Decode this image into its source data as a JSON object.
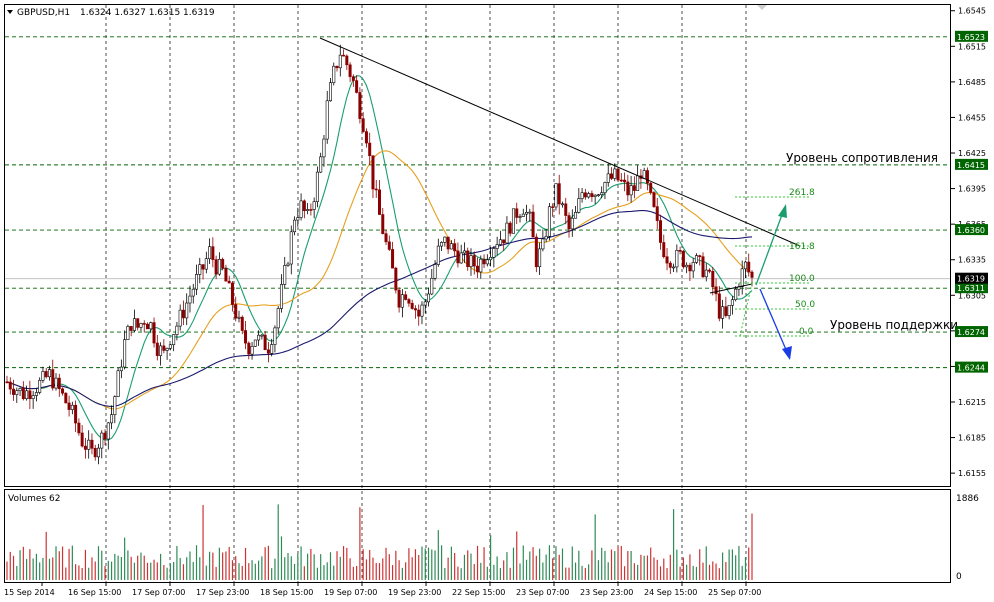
{
  "header": {
    "symbol_label": "GBPUSD,H1",
    "ohlc_text": "1.6324 1.6327 1.6315 1.6319"
  },
  "volume_panel": {
    "label": "Volumes 62",
    "scale_max_label": "1886",
    "scale_min_label": "0"
  },
  "annotations": {
    "resistance_label": "Уровень сопротивления",
    "support_label": "Уровень поддержки"
  },
  "colors": {
    "background": "#ffffff",
    "up_candle": "#000000",
    "down_candle": "#8b0000",
    "ma_fast": "#1a9e6e",
    "ma_mid": "#e6a020",
    "ma_slow": "#1a1a6e",
    "level_line": "#006400",
    "fib": "#32cd32",
    "arrow_up": "#1a9e6e",
    "arrow_down": "#1a3ee6",
    "volume_up": "#2e8b57",
    "volume_down": "#cd3333",
    "price_tag_bg": "#006400"
  },
  "chart_data": {
    "type": "candlestick",
    "symbol": "GBPUSD",
    "timeframe": "H1",
    "y_axis_ticks": [
      "1.6545",
      "1.6515",
      "1.6485",
      "1.6455",
      "1.6425",
      "1.6395",
      "1.6365",
      "1.6335",
      "1.6305",
      "1.6275",
      "1.6245",
      "1.6215",
      "1.6185",
      "1.6155"
    ],
    "ylim": [
      1.6145,
      1.6549
    ],
    "x_axis_ticks": [
      "15 Sep 2014",
      "16 Sep 15:00",
      "17 Sep 07:00",
      "17 Sep 23:00",
      "18 Sep 15:00",
      "19 Sep 07:00",
      "19 Sep 23:00",
      "22 Sep 15:00",
      "23 Sep 07:00",
      "23 Sep 23:00",
      "24 Sep 15:00",
      "25 Sep 07:00"
    ],
    "horizontal_levels": [
      {
        "value": 1.6523,
        "label": "1.6523"
      },
      {
        "value": 1.6415,
        "label": "1.6415"
      },
      {
        "value": 1.636,
        "label": "1.6360"
      },
      {
        "value": 1.6311,
        "label": "1.6311"
      },
      {
        "value": 1.6274,
        "label": "1.6274"
      },
      {
        "value": 1.6244,
        "label": "1.6244"
      }
    ],
    "current_price": {
      "value": 1.6319,
      "label": "1.6319"
    },
    "fibonacci_levels": [
      "261.8",
      "161.8",
      "100.0",
      "50.0",
      "0.0"
    ],
    "volume_ylim": [
      0,
      1886
    ],
    "close_path": [
      [
        0,
        1.6232
      ],
      [
        5,
        1.6222
      ],
      [
        9,
        1.6228
      ],
      [
        13,
        1.6238
      ],
      [
        17,
        1.622
      ],
      [
        20,
        1.6205
      ],
      [
        23,
        1.6182
      ],
      [
        26,
        1.6172
      ],
      [
        29,
        1.6185
      ],
      [
        32,
        1.6205
      ],
      [
        34,
        1.6235
      ],
      [
        36,
        1.6265
      ],
      [
        38,
        1.6282
      ],
      [
        40,
        1.6278
      ],
      [
        42,
        1.6285
      ],
      [
        44,
        1.628
      ],
      [
        46,
        1.6262
      ],
      [
        48,
        1.6255
      ],
      [
        50,
        1.627
      ],
      [
        52,
        1.628
      ],
      [
        54,
        1.6292
      ],
      [
        56,
        1.6305
      ],
      [
        58,
        1.6318
      ],
      [
        60,
        1.6328
      ],
      [
        62,
        1.6342
      ],
      [
        64,
        1.633
      ],
      [
        66,
        1.6325
      ],
      [
        68,
        1.6308
      ],
      [
        70,
        1.629
      ],
      [
        72,
        1.627
      ],
      [
        74,
        1.6262
      ],
      [
        76,
        1.627
      ],
      [
        78,
        1.6265
      ],
      [
        80,
        1.6262
      ],
      [
        82,
        1.628
      ],
      [
        84,
        1.6308
      ],
      [
        86,
        1.6338
      ],
      [
        88,
        1.6372
      ],
      [
        90,
        1.638
      ],
      [
        92,
        1.637
      ],
      [
        94,
        1.639
      ],
      [
        96,
        1.642
      ],
      [
        98,
        1.6465
      ],
      [
        100,
        1.6492
      ],
      [
        102,
        1.651
      ],
      [
        104,
        1.65
      ],
      [
        106,
        1.6485
      ],
      [
        108,
        1.6462
      ],
      [
        110,
        1.644
      ],
      [
        112,
        1.64
      ],
      [
        114,
        1.6372
      ],
      [
        116,
        1.6348
      ],
      [
        118,
        1.6325
      ],
      [
        120,
        1.6302
      ],
      [
        122,
        1.6308
      ],
      [
        124,
        1.63
      ],
      [
        126,
        1.6288
      ],
      [
        128,
        1.63
      ],
      [
        130,
        1.632
      ],
      [
        132,
        1.6342
      ],
      [
        134,
        1.635
      ],
      [
        136,
        1.6345
      ],
      [
        138,
        1.634
      ],
      [
        140,
        1.6335
      ],
      [
        142,
        1.6332
      ],
      [
        144,
        1.633
      ],
      [
        146,
        1.6338
      ],
      [
        148,
        1.6345
      ],
      [
        150,
        1.6352
      ],
      [
        152,
        1.6355
      ],
      [
        154,
        1.6365
      ],
      [
        156,
        1.6375
      ],
      [
        158,
        1.638
      ],
      [
        160,
        1.6368
      ],
      [
        162,
        1.6335
      ],
      [
        164,
        1.6345
      ],
      [
        166,
        1.6375
      ],
      [
        168,
        1.6392
      ],
      [
        170,
        1.6378
      ],
      [
        172,
        1.636
      ],
      [
        174,
        1.6372
      ],
      [
        176,
        1.6392
      ],
      [
        178,
        1.6395
      ],
      [
        180,
        1.6392
      ],
      [
        182,
        1.6398
      ],
      [
        184,
        1.6402
      ],
      [
        186,
        1.6405
      ],
      [
        188,
        1.64
      ],
      [
        190,
        1.6392
      ],
      [
        192,
        1.6395
      ],
      [
        194,
        1.641
      ],
      [
        196,
        1.6395
      ],
      [
        198,
        1.6375
      ],
      [
        200,
        1.635
      ],
      [
        202,
        1.6338
      ],
      [
        204,
        1.6335
      ],
      [
        206,
        1.6338
      ],
      [
        208,
        1.6332
      ],
      [
        210,
        1.6335
      ],
      [
        212,
        1.633
      ],
      [
        214,
        1.6325
      ],
      [
        216,
        1.6312
      ],
      [
        218,
        1.6292
      ],
      [
        220,
        1.6285
      ],
      [
        222,
        1.63
      ],
      [
        224,
        1.6318
      ],
      [
        226,
        1.633
      ],
      [
        228,
        1.6319
      ]
    ],
    "bar_count": 229
  }
}
